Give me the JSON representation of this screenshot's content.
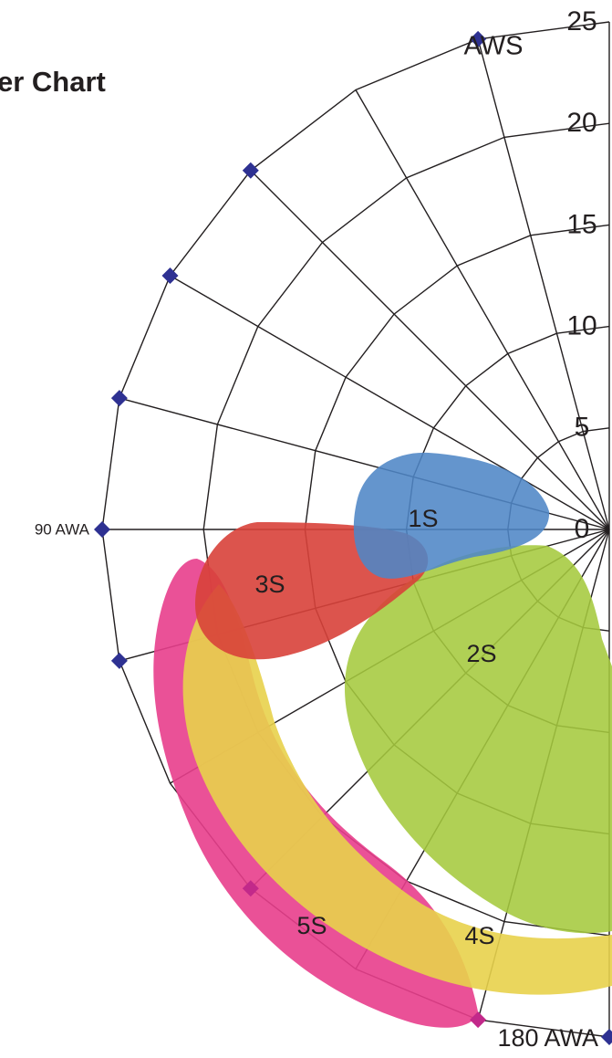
{
  "title": "er Chart",
  "colors": {
    "grid": "#231f20",
    "marker": "#2e3192",
    "marker_lower": "#c2298a"
  },
  "chart_data": {
    "type": "polar",
    "title": "er Chart",
    "radial_axis": {
      "label": "AWS",
      "ticks": [
        0,
        5,
        10,
        15,
        20,
        25
      ],
      "range": [
        0,
        25
      ]
    },
    "angular_axis": {
      "labeled_angles": [
        {
          "angle": 90,
          "label": "90 AWA"
        },
        {
          "angle": 180,
          "label": "180 AWA"
        }
      ],
      "spoke_angles": [
        0,
        15,
        30,
        45,
        60,
        75,
        90,
        105,
        120,
        135,
        150,
        165,
        180
      ]
    },
    "outer_markers_angles": [
      15,
      45,
      60,
      75,
      90,
      105,
      135,
      165,
      180
    ],
    "regions": [
      {
        "name": "5S",
        "color": "#e83e8c"
      },
      {
        "name": "4S",
        "color": "#e8d24b"
      },
      {
        "name": "2S",
        "color": "#a5c93d"
      },
      {
        "name": "3S",
        "color": "#d8413a"
      },
      {
        "name": "1S",
        "color": "#4f86c6"
      }
    ]
  }
}
